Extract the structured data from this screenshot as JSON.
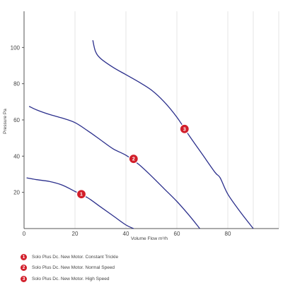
{
  "chart_data": {
    "type": "line",
    "xlabel": "Volume Flow m³/h",
    "ylabel": "Pressure Pa",
    "xlim": [
      0,
      100
    ],
    "ylim": [
      0,
      120
    ],
    "x_ticks": [
      0,
      20,
      40,
      60,
      80
    ],
    "y_ticks": [
      20,
      40,
      60,
      80,
      100
    ],
    "grid": "vertical",
    "line_color": "#2b2f8c",
    "marker_color": "#d21f2b",
    "series": [
      {
        "marker": "1",
        "marker_at": [
          22.5,
          19
        ],
        "points": [
          [
            1,
            28
          ],
          [
            5,
            27
          ],
          [
            10,
            26
          ],
          [
            15,
            24
          ],
          [
            20,
            20.5
          ],
          [
            25,
            17
          ],
          [
            30,
            12
          ],
          [
            35,
            7
          ],
          [
            40,
            2
          ],
          [
            43,
            0
          ]
        ]
      },
      {
        "marker": "2",
        "marker_at": [
          43,
          38.5
        ],
        "points": [
          [
            2,
            67.5
          ],
          [
            5,
            65.5
          ],
          [
            10,
            63
          ],
          [
            15,
            61
          ],
          [
            20,
            58.5
          ],
          [
            25,
            54
          ],
          [
            30,
            49
          ],
          [
            35,
            44
          ],
          [
            40,
            40.5
          ],
          [
            45,
            35.5
          ],
          [
            50,
            29
          ],
          [
            55,
            22
          ],
          [
            60,
            15
          ],
          [
            65,
            7
          ],
          [
            69,
            0
          ]
        ]
      },
      {
        "marker": "3",
        "marker_at": [
          63,
          55
        ],
        "points": [
          [
            27,
            104
          ],
          [
            28,
            98
          ],
          [
            30,
            94
          ],
          [
            35,
            89
          ],
          [
            40,
            85
          ],
          [
            45,
            81
          ],
          [
            50,
            76.5
          ],
          [
            55,
            70
          ],
          [
            60,
            61.5
          ],
          [
            65,
            51
          ],
          [
            70,
            41
          ],
          [
            75,
            31
          ],
          [
            77,
            28
          ],
          [
            80,
            19
          ],
          [
            85,
            9
          ],
          [
            90,
            0
          ]
        ]
      }
    ]
  },
  "legend": [
    {
      "marker": "1",
      "label": "Solo Plus Dc. New Motor. Constant Trickle"
    },
    {
      "marker": "2",
      "label": "Solo Plus Dc. New Motor. Normal Speed"
    },
    {
      "marker": "3",
      "label": "Solo Plus Dc. New Motor. High Speed"
    }
  ]
}
